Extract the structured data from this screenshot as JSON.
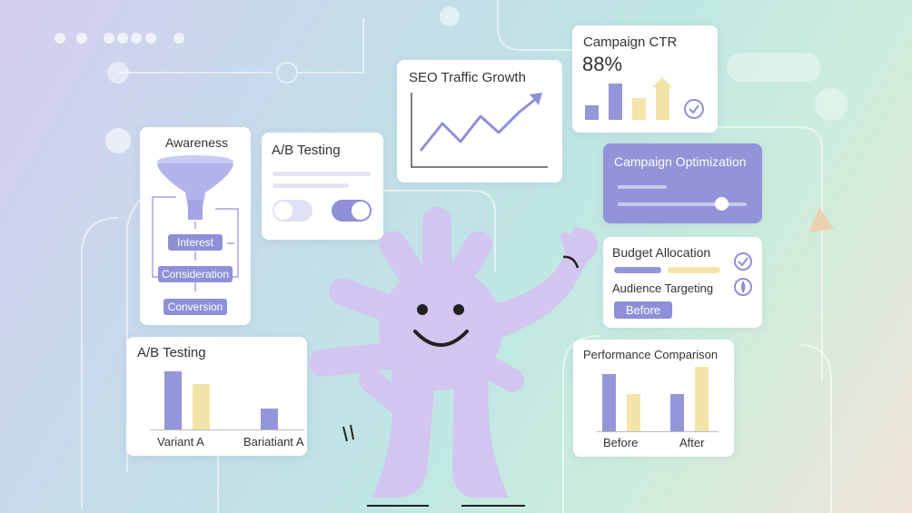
{
  "funnel": {
    "title": "Awareness",
    "stages": [
      "Interest",
      "Consideration",
      "Conversion"
    ]
  },
  "ab_toggle_card": {
    "title": "A/B Testing"
  },
  "seo_card": {
    "title": "SEO Traffic Growth"
  },
  "ctr_card": {
    "title": "Campaign CTR",
    "value": "88%",
    "bars": [
      {
        "value": 14,
        "color": "#9596d9"
      },
      {
        "value": 36,
        "color": "#9596d9"
      },
      {
        "value": 22,
        "color": "#f3e4a9"
      },
      {
        "value": 32,
        "color": "#f3e4a9"
      }
    ]
  },
  "optimization_card": {
    "title": "Campaign Optimization",
    "slider_value": 0.8
  },
  "budget_card": {
    "title": "Budget Allocation",
    "subtitle": "Audience Targeting",
    "button_label": "Before"
  },
  "ab_chart": {
    "title": "A/B Testing",
    "labels": [
      "Variant A",
      "Bariatiant A"
    ],
    "chart_data": {
      "type": "bar",
      "categories": [
        "Variant A",
        "Bariatiant A"
      ],
      "series": [
        {
          "values": [
            66,
            24
          ],
          "color": "#9596d9"
        },
        {
          "values": [
            52,
            null
          ],
          "color": "#f3e4a9"
        }
      ],
      "ylim": [
        0,
        70
      ]
    }
  },
  "perf_chart": {
    "title": "Performance Comparison",
    "labels": [
      "Before",
      "After"
    ],
    "chart_data": {
      "type": "bar",
      "categories": [
        "Before",
        "After"
      ],
      "series": [
        {
          "values": [
            62,
            40
          ],
          "color": "#9596d9"
        },
        {
          "values": [
            40,
            70
          ],
          "color": "#f3e4a9"
        }
      ],
      "ylim": [
        0,
        70
      ]
    }
  }
}
